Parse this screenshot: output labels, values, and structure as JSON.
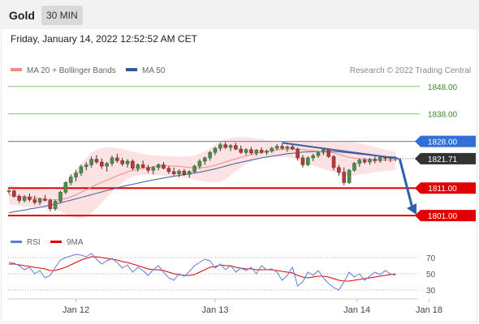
{
  "header": {
    "instrument": "Gold",
    "timeframe": "30 MIN"
  },
  "datetime": "Friday, January 14, 2022 12:52:52 AM CET",
  "legend": {
    "items": [
      {
        "label": "MA 20 + Bollinger Bands",
        "color": "#f28b82"
      },
      {
        "label": "MA 50",
        "color": "#2d5a9a"
      }
    ],
    "credit": "Research © 2022 Trading Central"
  },
  "osc_legend": {
    "items": [
      {
        "label": "RSI",
        "color": "#5b7fd6"
      },
      {
        "label": "9MA",
        "color": "#e00000"
      }
    ]
  },
  "chart_data": [
    {
      "type": "candlestick",
      "title": "",
      "ylim": [
        1797.5,
        1850
      ],
      "x_ticks": [
        "Jan 12",
        "Jan 13",
        "Jan 14",
        "Jan 18"
      ],
      "levels": [
        {
          "value": 1848.0,
          "label": "1848.00",
          "color": "#8cc36a",
          "text_color": "#3d8c1e",
          "style": "line"
        },
        {
          "value": 1838.0,
          "label": "1838.00",
          "color": "#8cc36a",
          "text_color": "#3d8c1e",
          "style": "line"
        },
        {
          "value": 1828.0,
          "label": "1828.00",
          "color": "#4a7fc8",
          "text_color": "#ffffff",
          "bg": "#2f6fd6",
          "style": "line"
        },
        {
          "value": 1821.71,
          "label": "1821.71",
          "color": "#555555",
          "text_color": "#ffffff",
          "bg": "#333333",
          "style": "dotted"
        },
        {
          "value": 1811.0,
          "label": "1811.00",
          "color": "#e00000",
          "text_color": "#ffffff",
          "bg": "#e00000",
          "style": "bold"
        },
        {
          "value": 1801.0,
          "label": "1801.00",
          "color": "#e00000",
          "text_color": "#ffffff",
          "bg": "#e00000",
          "style": "bold"
        }
      ],
      "ohlc": [
        [
          1809.8,
          1810.5,
          1808.9,
          1810.0
        ],
        [
          1810.0,
          1810.4,
          1807.5,
          1808.0
        ],
        [
          1808.0,
          1808.8,
          1805.5,
          1806.5
        ],
        [
          1806.5,
          1808.5,
          1805.8,
          1807.8
        ],
        [
          1807.8,
          1809.0,
          1806.0,
          1806.8
        ],
        [
          1806.8,
          1808.2,
          1805.0,
          1805.8
        ],
        [
          1805.8,
          1807.5,
          1804.8,
          1807.0
        ],
        [
          1807.0,
          1808.5,
          1806.2,
          1806.5
        ],
        [
          1806.5,
          1807.2,
          1802.5,
          1803.5
        ],
        [
          1803.5,
          1806.8,
          1802.8,
          1806.2
        ],
        [
          1806.2,
          1810.0,
          1805.5,
          1809.5
        ],
        [
          1809.5,
          1813.5,
          1808.8,
          1813.0
        ],
        [
          1813.0,
          1816.0,
          1812.0,
          1815.0
        ],
        [
          1815.0,
          1817.5,
          1813.5,
          1816.5
        ],
        [
          1816.5,
          1819.5,
          1815.5,
          1818.8
        ],
        [
          1818.8,
          1820.5,
          1817.5,
          1819.5
        ],
        [
          1819.5,
          1822.5,
          1818.5,
          1821.5
        ],
        [
          1821.5,
          1823.0,
          1819.8,
          1820.5
        ],
        [
          1820.5,
          1821.8,
          1818.0,
          1819.0
        ],
        [
          1819.0,
          1820.5,
          1817.0,
          1820.0
        ],
        [
          1820.0,
          1822.8,
          1819.0,
          1822.0
        ],
        [
          1822.0,
          1823.5,
          1820.2,
          1821.0
        ],
        [
          1821.0,
          1822.0,
          1819.0,
          1819.8
        ],
        [
          1819.8,
          1821.5,
          1818.5,
          1820.8
        ],
        [
          1820.8,
          1821.5,
          1817.5,
          1818.2
        ],
        [
          1818.2,
          1820.0,
          1817.0,
          1819.5
        ],
        [
          1819.5,
          1821.0,
          1818.2,
          1818.5
        ],
        [
          1818.5,
          1819.5,
          1816.5,
          1817.5
        ],
        [
          1817.5,
          1819.0,
          1816.0,
          1818.5
        ],
        [
          1818.5,
          1820.0,
          1817.5,
          1819.5
        ],
        [
          1819.5,
          1820.5,
          1817.8,
          1818.2
        ],
        [
          1818.2,
          1819.0,
          1816.2,
          1817.0
        ],
        [
          1817.0,
          1818.5,
          1815.5,
          1816.2
        ],
        [
          1816.2,
          1817.8,
          1815.0,
          1817.2
        ],
        [
          1817.2,
          1818.0,
          1815.5,
          1816.0
        ],
        [
          1816.0,
          1817.5,
          1814.8,
          1817.0
        ],
        [
          1817.0,
          1819.5,
          1816.5,
          1819.0
        ],
        [
          1819.0,
          1821.5,
          1818.0,
          1820.8
        ],
        [
          1820.8,
          1822.5,
          1819.5,
          1822.0
        ],
        [
          1822.0,
          1824.5,
          1821.0,
          1824.0
        ],
        [
          1824.0,
          1826.0,
          1823.0,
          1825.5
        ],
        [
          1825.5,
          1827.5,
          1824.5,
          1826.8
        ],
        [
          1826.8,
          1827.8,
          1825.2,
          1825.8
        ],
        [
          1825.8,
          1827.0,
          1824.5,
          1826.5
        ],
        [
          1826.5,
          1827.5,
          1824.8,
          1825.2
        ],
        [
          1825.2,
          1826.5,
          1823.5,
          1824.0
        ],
        [
          1824.0,
          1825.5,
          1823.0,
          1825.0
        ],
        [
          1825.0,
          1826.0,
          1823.2,
          1823.8
        ],
        [
          1823.8,
          1825.2,
          1822.8,
          1824.8
        ],
        [
          1824.8,
          1825.8,
          1823.5,
          1824.0
        ],
        [
          1824.0,
          1825.0,
          1823.0,
          1824.5
        ],
        [
          1824.5,
          1826.0,
          1823.8,
          1825.5
        ],
        [
          1825.5,
          1827.0,
          1824.8,
          1826.2
        ],
        [
          1826.2,
          1827.2,
          1825.0,
          1825.5
        ],
        [
          1825.5,
          1826.5,
          1824.2,
          1826.0
        ],
        [
          1826.0,
          1827.0,
          1824.8,
          1825.2
        ],
        [
          1825.2,
          1825.8,
          1821.0,
          1822.0
        ],
        [
          1822.0,
          1823.0,
          1818.5,
          1819.5
        ],
        [
          1819.5,
          1822.5,
          1819.0,
          1822.0
        ],
        [
          1822.0,
          1823.5,
          1820.8,
          1822.8
        ],
        [
          1822.8,
          1824.5,
          1822.0,
          1824.0
        ],
        [
          1824.0,
          1825.5,
          1823.0,
          1825.0
        ],
        [
          1825.0,
          1825.5,
          1822.0,
          1822.5
        ],
        [
          1822.5,
          1823.0,
          1817.5,
          1818.5
        ],
        [
          1818.5,
          1819.5,
          1815.5,
          1816.8
        ],
        [
          1816.8,
          1818.5,
          1812.0,
          1813.0
        ],
        [
          1813.0,
          1818.0,
          1812.5,
          1817.5
        ],
        [
          1817.5,
          1820.5,
          1817.0,
          1820.0
        ],
        [
          1820.0,
          1821.8,
          1818.8,
          1821.2
        ],
        [
          1821.2,
          1822.0,
          1819.8,
          1820.5
        ],
        [
          1820.5,
          1822.0,
          1819.5,
          1821.5
        ],
        [
          1821.5,
          1822.5,
          1820.0,
          1821.0
        ],
        [
          1821.0,
          1822.8,
          1820.2,
          1822.2
        ],
        [
          1822.2,
          1822.8,
          1820.8,
          1821.8
        ],
        [
          1821.8,
          1822.5,
          1820.5,
          1822.0
        ],
        [
          1822.0,
          1822.5,
          1820.8,
          1821.7
        ]
      ],
      "ma20": [
        1808.5,
        1808.3,
        1808.0,
        1807.8,
        1807.6,
        1807.4,
        1807.2,
        1807.0,
        1806.8,
        1806.7,
        1806.8,
        1807.2,
        1807.8,
        1808.6,
        1809.5,
        1810.4,
        1811.4,
        1812.3,
        1813.1,
        1813.9,
        1814.7,
        1815.5,
        1816.2,
        1816.9,
        1817.4,
        1817.8,
        1818.2,
        1818.5,
        1818.8,
        1819.0,
        1819.1,
        1819.1,
        1819.0,
        1818.9,
        1818.7,
        1818.5,
        1818.4,
        1818.4,
        1818.5,
        1818.8,
        1819.3,
        1819.9,
        1820.5,
        1821.1,
        1821.7,
        1822.2,
        1822.7,
        1823.2,
        1823.6,
        1824.0,
        1824.3,
        1824.6,
        1824.9,
        1825.1,
        1825.2,
        1825.3,
        1825.2,
        1825.0,
        1824.8,
        1824.6,
        1824.5,
        1824.4,
        1824.2,
        1823.8,
        1823.3,
        1822.7,
        1822.2,
        1821.9,
        1821.7,
        1821.5,
        1821.4,
        1821.3,
        1821.2,
        1821.2,
        1821.2,
        1821.3
      ],
      "bb_upper": [
        1812.0,
        1811.8,
        1811.5,
        1811.2,
        1811.0,
        1810.8,
        1810.6,
        1810.4,
        1810.3,
        1810.4,
        1811.0,
        1813.0,
        1815.5,
        1817.8,
        1820.0,
        1822.0,
        1823.8,
        1825.0,
        1825.6,
        1825.8,
        1825.8,
        1825.6,
        1825.2,
        1824.8,
        1824.3,
        1823.8,
        1823.4,
        1823.1,
        1822.9,
        1822.8,
        1822.7,
        1822.6,
        1822.5,
        1822.5,
        1822.5,
        1822.6,
        1822.9,
        1823.5,
        1824.4,
        1825.5,
        1826.8,
        1828.0,
        1828.8,
        1829.3,
        1829.5,
        1829.6,
        1829.5,
        1829.3,
        1829.0,
        1828.7,
        1828.4,
        1828.2,
        1828.1,
        1828.1,
        1828.2,
        1828.3,
        1828.4,
        1828.4,
        1828.3,
        1828.1,
        1827.9,
        1827.8,
        1827.7,
        1827.6,
        1827.6,
        1827.7,
        1827.8,
        1827.7,
        1827.4,
        1827.0,
        1826.5,
        1826.0,
        1825.5,
        1825.0,
        1824.5,
        1824.2
      ],
      "bb_lower": [
        1805.0,
        1804.8,
        1804.6,
        1804.4,
        1804.2,
        1804.0,
        1803.9,
        1803.7,
        1803.4,
        1803.0,
        1802.6,
        1801.6,
        1800.6,
        1800.0,
        1800.0,
        1800.5,
        1801.8,
        1803.6,
        1805.6,
        1807.6,
        1809.6,
        1811.4,
        1813.0,
        1814.4,
        1815.2,
        1815.6,
        1815.8,
        1815.9,
        1815.8,
        1815.6,
        1815.4,
        1815.3,
        1815.2,
        1815.1,
        1814.8,
        1814.5,
        1814.2,
        1813.8,
        1813.4,
        1813.2,
        1813.2,
        1813.4,
        1814.2,
        1815.6,
        1817.2,
        1818.6,
        1819.8,
        1820.8,
        1821.6,
        1822.0,
        1822.2,
        1822.4,
        1822.4,
        1822.3,
        1822.2,
        1821.8,
        1821.3,
        1820.6,
        1819.9,
        1819.2,
        1818.6,
        1818.0,
        1817.4,
        1816.8,
        1816.2,
        1815.6,
        1815.4,
        1815.6,
        1816.0,
        1816.2,
        1816.5,
        1816.8,
        1817.0,
        1817.2,
        1817.4,
        1817.6
      ],
      "ma50": [
        1802.0,
        1802.4,
        1802.7,
        1803.0,
        1803.4,
        1803.7,
        1804.0,
        1804.4,
        1804.8,
        1805.2,
        1805.6,
        1806.1,
        1806.6,
        1807.1,
        1807.6,
        1808.1,
        1808.6,
        1809.1,
        1809.6,
        1810.1,
        1810.6,
        1811.1,
        1811.6,
        1812.0,
        1812.4,
        1812.8,
        1813.2,
        1813.6,
        1814.0,
        1814.3,
        1814.7,
        1815.0,
        1815.3,
        1815.6,
        1815.9,
        1816.2,
        1816.5,
        1816.8,
        1817.2,
        1817.6,
        1818.0,
        1818.5,
        1819.0,
        1819.5,
        1820.0,
        1820.4,
        1820.8,
        1821.2,
        1821.6,
        1822.0,
        1822.3,
        1822.6,
        1822.9,
        1823.2,
        1823.5,
        1823.7,
        1823.9,
        1824.1,
        1824.2,
        1824.3,
        1824.4,
        1824.4,
        1824.4,
        1824.3,
        1824.2,
        1824.0,
        1823.8,
        1823.6,
        1823.4,
        1823.2,
        1823.0,
        1822.8,
        1822.6,
        1822.5,
        1822.4,
        1822.3
      ]
    },
    {
      "type": "line",
      "title": "",
      "ylim": [
        20,
        80
      ],
      "y_ticks": [
        70,
        50,
        30
      ],
      "x_ticks": [
        "Jan 12",
        "Jan 13",
        "Jan 14",
        "Jan 18"
      ],
      "series": [
        {
          "name": "RSI",
          "color": "#5b7fd6",
          "values": [
            64,
            63,
            60,
            55,
            58,
            50,
            54,
            45,
            48,
            58,
            67,
            70,
            72,
            74,
            73,
            71,
            75,
            68,
            62,
            66,
            69,
            64,
            57,
            61,
            52,
            58,
            54,
            48,
            55,
            60,
            52,
            45,
            42,
            50,
            47,
            53,
            60,
            64,
            68,
            66,
            57,
            62,
            55,
            60,
            52,
            57,
            54,
            58,
            50,
            60,
            55,
            56,
            52,
            42,
            48,
            58,
            35,
            40,
            52,
            48,
            54,
            45,
            38,
            33,
            30,
            40,
            52,
            46,
            50,
            42,
            47,
            52,
            49,
            54,
            50,
            48
          ]
        },
        {
          "name": "9MA",
          "color": "#e00000",
          "values": [
            62,
            62,
            61,
            60,
            59,
            58,
            57,
            56,
            54,
            54,
            56,
            58,
            61,
            64,
            67,
            69,
            71,
            71,
            70,
            69,
            68,
            67,
            65,
            64,
            62,
            60,
            58,
            56,
            55,
            55,
            54,
            52,
            50,
            49,
            48,
            48,
            49,
            52,
            55,
            58,
            59,
            61,
            60,
            60,
            58,
            57,
            56,
            56,
            55,
            55,
            55,
            55,
            54,
            53,
            52,
            51,
            48,
            46,
            45,
            46,
            47,
            47,
            46,
            44,
            42,
            41,
            41,
            42,
            43,
            44,
            45,
            46,
            47,
            48,
            49,
            50
          ]
        }
      ]
    }
  ]
}
